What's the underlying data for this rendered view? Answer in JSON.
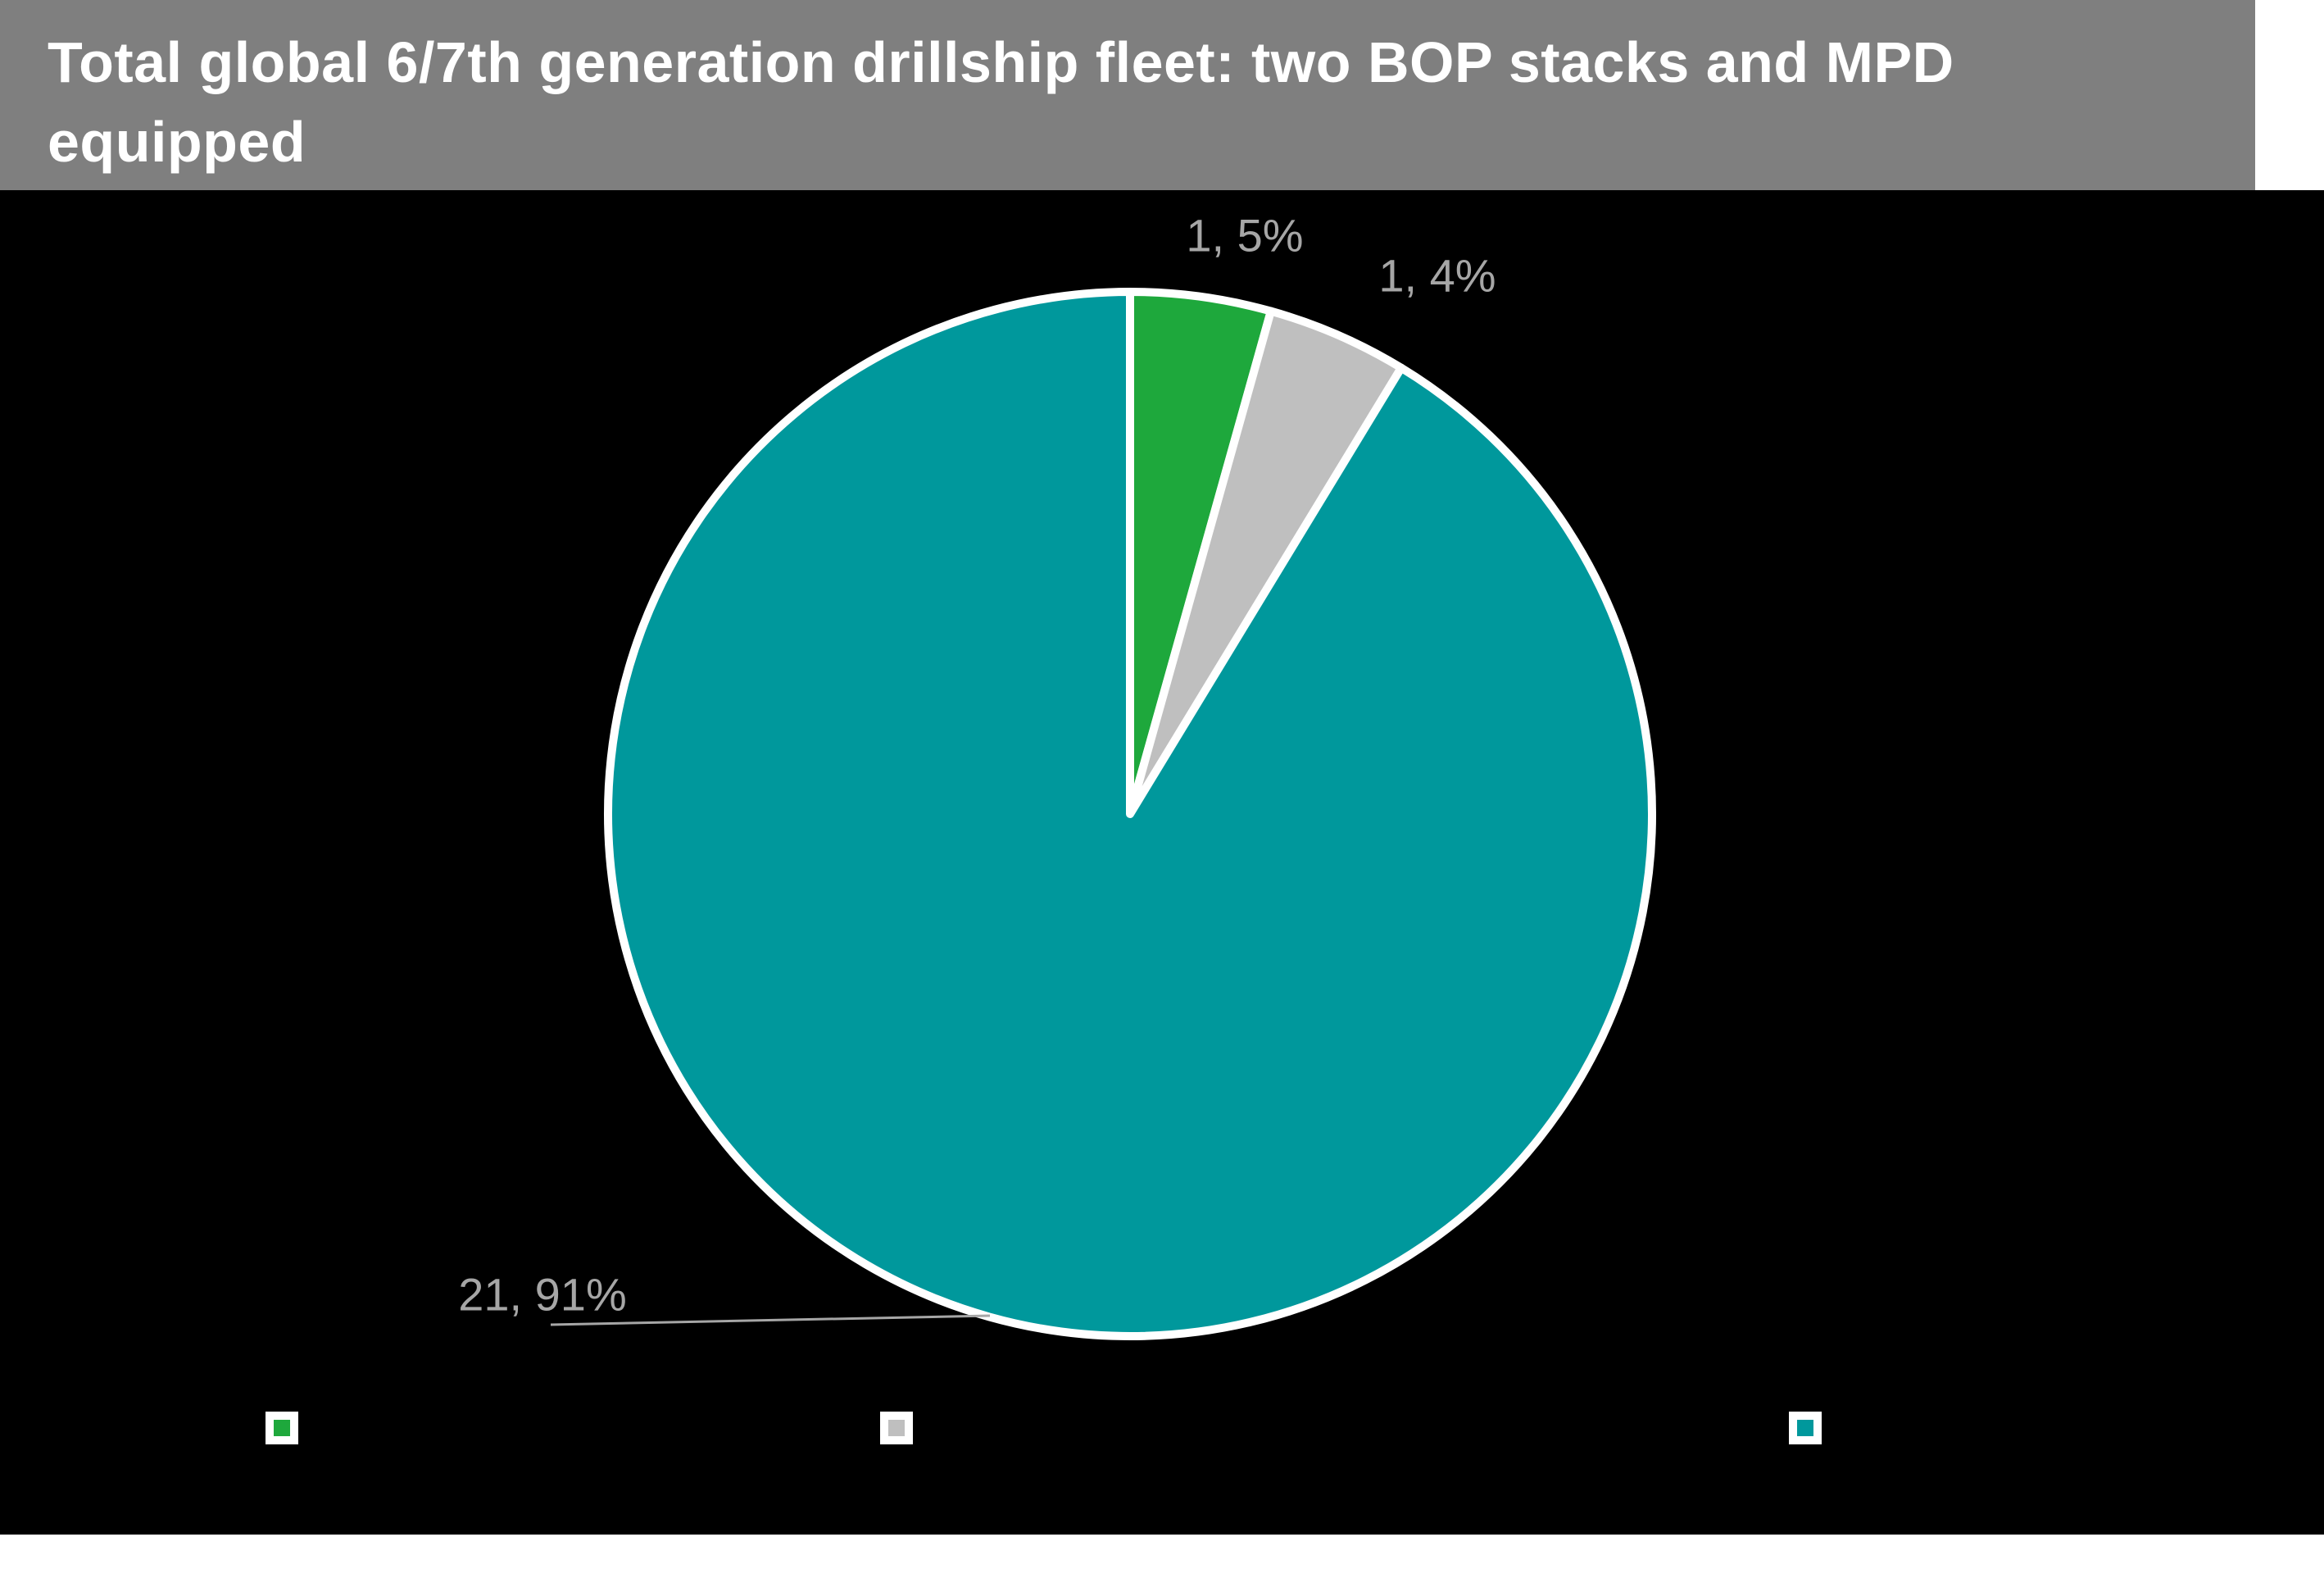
{
  "header": {
    "title": "Total global 6/7th generation drillship fleet: two BOP stacks and MPD equipped"
  },
  "chart_data": {
    "type": "pie",
    "title": "Total global 6/7th generation drillship fleet: two BOP stacks and MPD equipped",
    "total": 23,
    "slices": [
      {
        "value": 1,
        "percent": 5,
        "data_label": "1, 5%",
        "color": "#1ea83c"
      },
      {
        "value": 1,
        "percent": 4,
        "data_label": "1, 4%",
        "color": "#bfbfbf"
      },
      {
        "value": 21,
        "percent": 91,
        "data_label": "21, 91%",
        "color": "#00989c"
      }
    ],
    "start_angle_deg": 0,
    "direction": "clockwise",
    "legend_position": "bottom",
    "background_color": "#000000",
    "title_bar_color": "#7f7f7f",
    "data_label_color": "#a6a6a6",
    "slice_border_color": "#ffffff"
  },
  "legend": {
    "items": [
      {
        "color": "#1ea83c",
        "label": ""
      },
      {
        "color": "#bfbfbf",
        "label": ""
      },
      {
        "color": "#00989c",
        "label": ""
      }
    ]
  }
}
